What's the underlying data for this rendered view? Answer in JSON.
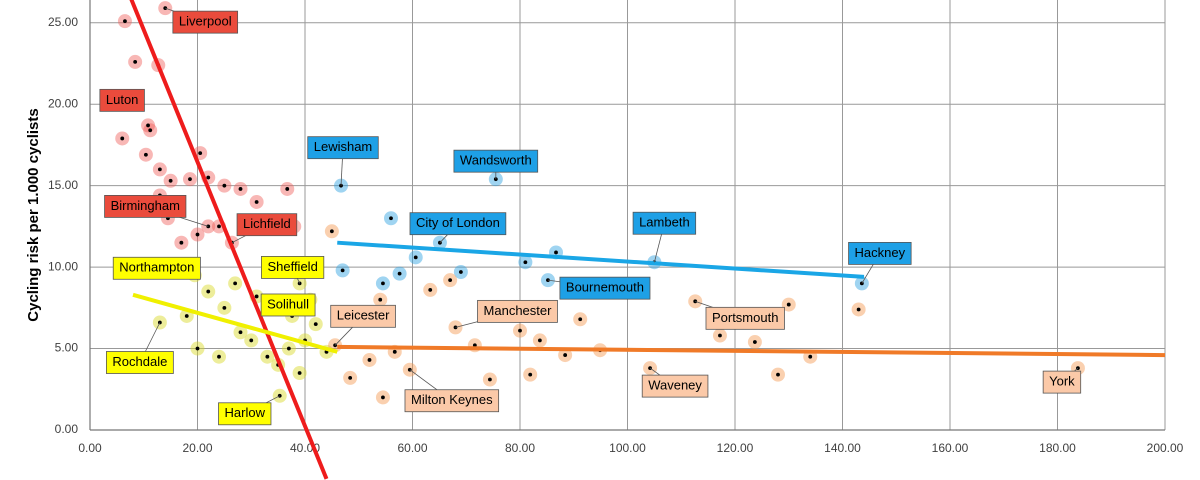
{
  "chart_data": {
    "type": "scatter",
    "y_label": "Cycling risk per 1.000 cyclists",
    "xlim": [
      0,
      200
    ],
    "xticks": [
      {
        "value": 0,
        "label": "0.00"
      },
      {
        "value": 20,
        "label": "20.00"
      },
      {
        "value": 40,
        "label": "40.00"
      },
      {
        "value": 60,
        "label": "60.00"
      },
      {
        "value": 80,
        "label": "80.00"
      },
      {
        "value": 100,
        "label": "100.00"
      },
      {
        "value": 120,
        "label": "120.00"
      },
      {
        "value": 140,
        "label": "140.00"
      },
      {
        "value": 160,
        "label": "160.00"
      },
      {
        "value": 180,
        "label": "180.00"
      },
      {
        "value": 200,
        "label": "200.00"
      }
    ],
    "ylim": [
      0,
      26.4
    ],
    "yticks": [
      {
        "value": 0,
        "label": "0.00"
      },
      {
        "value": 5,
        "label": "5.00"
      },
      {
        "value": 10,
        "label": "10.00"
      },
      {
        "value": 15,
        "label": "15.00"
      },
      {
        "value": 20,
        "label": "20.00"
      },
      {
        "value": 25,
        "label": "25.00"
      }
    ],
    "grid": true,
    "series": [
      {
        "color": "#f0605a",
        "label_color": "#ea4b3c",
        "x": [
          14,
          6.5,
          12.7,
          8.4,
          8.4,
          10.8,
          11.2,
          6,
          10.4,
          13,
          15,
          18.6,
          20.5,
          22,
          25,
          28,
          36.7,
          31,
          38,
          26.4,
          24,
          20,
          17,
          14.5,
          13,
          22
        ],
        "values": [
          25.9,
          25.1,
          22.4,
          22.6,
          20.3,
          18.7,
          18.4,
          17.9,
          16.9,
          16,
          15.3,
          15.4,
          17,
          15.5,
          15,
          14.8,
          14.8,
          14,
          12.5,
          11.5,
          12.5,
          12,
          11.5,
          13,
          14.4,
          12.5
        ],
        "labels": [
          "Liverpool",
          null,
          null,
          null,
          "Luton",
          null,
          null,
          null,
          null,
          null,
          null,
          null,
          null,
          null,
          null,
          null,
          null,
          null,
          null,
          "Lichfield",
          null,
          null,
          null,
          null,
          null,
          "Birmingham"
        ]
      },
      {
        "color": "#d6d61e",
        "label_color": "#ffff00",
        "x": [
          19.5,
          13,
          35.3,
          22,
          25,
          28,
          30,
          33,
          35,
          37,
          39,
          40,
          42,
          44,
          31,
          27,
          24,
          20,
          18,
          36,
          41,
          39,
          37.6
        ],
        "values": [
          9.5,
          6.6,
          2.1,
          8.5,
          7.5,
          6,
          5.5,
          4.5,
          4,
          5,
          3.5,
          5.5,
          6.5,
          4.8,
          8.2,
          9,
          4.5,
          5,
          7,
          7.5,
          8,
          9,
          7
        ],
        "labels": [
          "Northampton",
          "Rochdale",
          "Harlow",
          null,
          null,
          null,
          null,
          null,
          null,
          null,
          null,
          null,
          null,
          null,
          null,
          null,
          null,
          null,
          null,
          null,
          null,
          "Sheffield",
          "Solihull"
        ]
      },
      {
        "color": "#2a9fe0",
        "label_color": "#1ea0e6",
        "x": [
          46.7,
          75.5,
          65.1,
          105,
          143.6,
          85.2,
          56,
          54.5,
          57.6,
          60.6,
          69,
          81,
          86.7,
          47
        ],
        "values": [
          15,
          15.4,
          11.5,
          10.3,
          9,
          9.2,
          13,
          9,
          9.6,
          10.6,
          9.7,
          10.3,
          10.9,
          9.8
        ],
        "labels": [
          "Lewisham",
          "Wandsworth",
          "City of London",
          "Lambeth",
          "Hackney",
          "Bournemouth",
          null,
          null,
          null,
          null,
          null,
          null,
          null,
          null
        ]
      },
      {
        "color": "#f4964e",
        "label_color": "#fbc9a8",
        "x": [
          45.6,
          68,
          59.5,
          112.6,
          104.2,
          183.8,
          45,
          54,
          63.3,
          67,
          80,
          83.7,
          88.4,
          91.2,
          81.9,
          94.9,
          117.2,
          123.7,
          128,
          130,
          134,
          143,
          52,
          56.7,
          48.4,
          71.6,
          74.4,
          54.5
        ],
        "values": [
          5.2,
          6.3,
          3.7,
          7.9,
          3.8,
          3.8,
          12.2,
          8,
          8.6,
          9.2,
          6.1,
          5.5,
          4.6,
          6.8,
          3.4,
          4.9,
          5.8,
          5.4,
          3.4,
          7.7,
          4.5,
          7.4,
          4.3,
          4.8,
          3.2,
          5.2,
          3.1,
          2
        ],
        "labels": [
          "Leicester",
          "Manchester",
          "Milton Keynes",
          "Portsmouth",
          "Waveney",
          "York",
          null,
          null,
          null,
          null,
          null,
          null,
          null,
          null,
          null,
          null,
          null,
          null,
          null,
          null,
          null,
          null,
          null,
          null,
          null,
          null,
          null,
          null
        ]
      }
    ],
    "trendlines": [
      {
        "color": "#ee1c1c",
        "x": [
          7,
          44
        ],
        "values": [
          27,
          -3
        ]
      },
      {
        "color": "#f0f000",
        "x": [
          8,
          46
        ],
        "values": [
          8.3,
          4.8
        ]
      },
      {
        "color": "#1aa6e6",
        "x": [
          46,
          144
        ],
        "values": [
          11.5,
          9.4
        ]
      },
      {
        "color": "#f07a28",
        "x": [
          46,
          200
        ],
        "values": [
          5.1,
          4.6
        ]
      }
    ]
  }
}
